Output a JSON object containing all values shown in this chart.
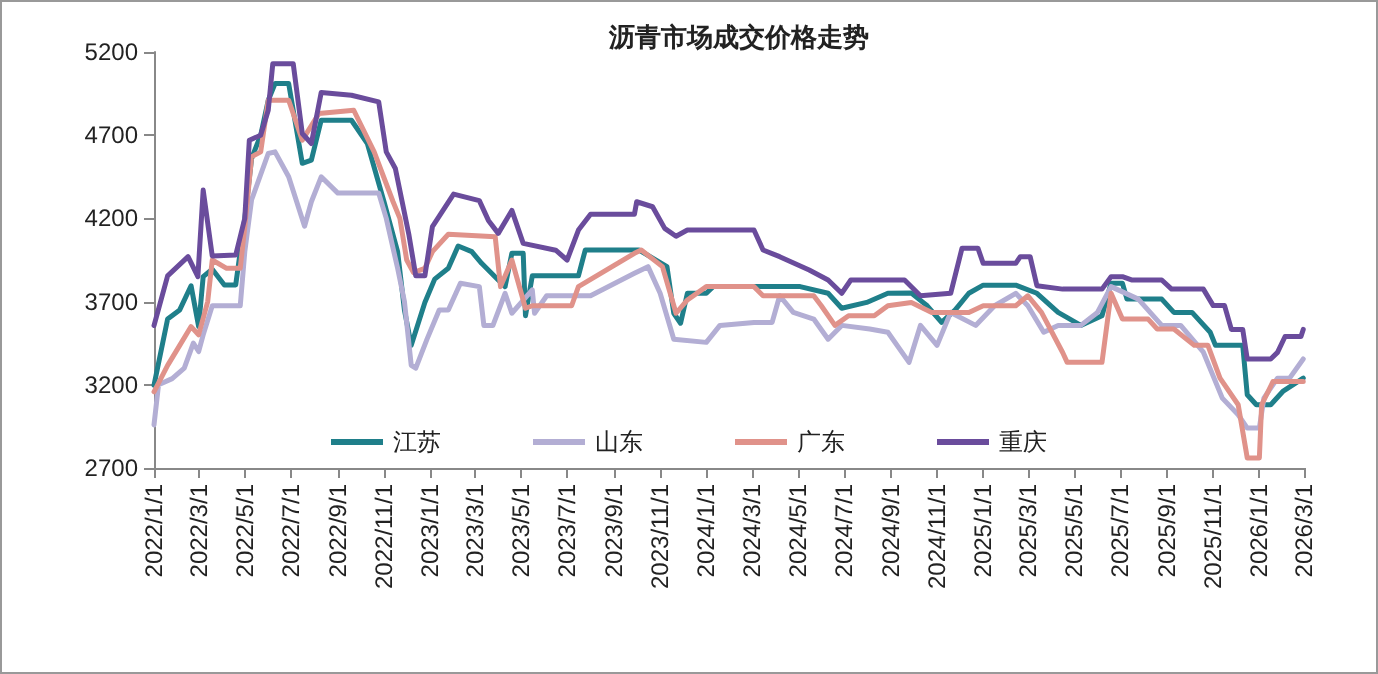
{
  "chart_data": {
    "type": "line",
    "title": "沥青市场成交价格走势",
    "xlim": [
      "2022-01-01",
      "2026-03-01"
    ],
    "xticks": [
      {
        "value": "2022-01-01",
        "label": "2022/1/1"
      },
      {
        "value": "2022-03-01",
        "label": "2022/3/1"
      },
      {
        "value": "2022-05-01",
        "label": "2022/5/1"
      },
      {
        "value": "2022-07-01",
        "label": "2022/7/1"
      },
      {
        "value": "2022-09-01",
        "label": "2022/9/1"
      },
      {
        "value": "2022-11-01",
        "label": "2022/11/1"
      },
      {
        "value": "2023-01-01",
        "label": "2023/1/1"
      },
      {
        "value": "2023-03-01",
        "label": "2023/3/1"
      },
      {
        "value": "2023-05-01",
        "label": "2023/5/1"
      },
      {
        "value": "2023-07-01",
        "label": "2023/7/1"
      },
      {
        "value": "2023-09-01",
        "label": "2023/9/1"
      },
      {
        "value": "2023-11-01",
        "label": "2023/11/1"
      },
      {
        "value": "2024-01-01",
        "label": "2024/1/1"
      },
      {
        "value": "2024-03-01",
        "label": "2024/3/1"
      },
      {
        "value": "2024-05-01",
        "label": "2024/5/1"
      },
      {
        "value": "2024-07-01",
        "label": "2024/7/1"
      },
      {
        "value": "2024-09-01",
        "label": "2024/9/1"
      },
      {
        "value": "2024-11-01",
        "label": "2024/11/1"
      },
      {
        "value": "2025-01-01",
        "label": "2025/1/1"
      },
      {
        "value": "2025-03-01",
        "label": "2025/3/1"
      },
      {
        "value": "2025-05-01",
        "label": "2025/5/1"
      },
      {
        "value": "2025-07-01",
        "label": "2025/7/1"
      },
      {
        "value": "2025-09-01",
        "label": "2025/9/1"
      },
      {
        "value": "2025-11-01",
        "label": "2025/11/1"
      },
      {
        "value": "2026-01-01",
        "label": "2026/1/1"
      },
      {
        "value": "2026-03-01",
        "label": "2026/3/1"
      }
    ],
    "ylim": [
      2700,
      5200
    ],
    "yticks": [
      2700,
      3200,
      3700,
      4200,
      4700,
      5200
    ],
    "grid": false,
    "legend": "bottom",
    "marker": "none",
    "line_style": "solid",
    "series": [
      {
        "name": "江苏",
        "color": "#1f7f8a",
        "x": [
          "2022-01-01",
          "2022-01-19",
          "2022-02-04",
          "2022-02-19",
          "2022-03-01",
          "2022-03-07",
          "2022-03-19",
          "2022-04-04",
          "2022-04-19",
          "2022-05-01",
          "2022-05-10",
          "2022-05-22",
          "2022-06-01",
          "2022-06-10",
          "2022-06-28",
          "2022-07-16",
          "2022-07-28",
          "2022-08-10",
          "2022-09-19",
          "2022-10-10",
          "2022-11-01",
          "2022-11-19",
          "2022-11-28",
          "2022-12-07",
          "2022-12-25",
          "2023-01-07",
          "2023-01-25",
          "2023-02-07",
          "2023-02-25",
          "2023-03-10",
          "2023-04-01",
          "2023-04-10",
          "2023-04-19",
          "2023-05-04",
          "2023-05-07",
          "2023-05-16",
          "2023-07-16",
          "2023-07-25",
          "2023-10-04",
          "2023-11-10",
          "2023-11-19",
          "2023-11-28",
          "2023-12-07",
          "2024-01-01",
          "2024-01-10",
          "2024-05-04",
          "2024-06-10",
          "2024-06-28",
          "2024-07-31",
          "2024-08-28",
          "2024-09-28",
          "2024-10-19",
          "2024-11-07",
          "2024-11-25",
          "2024-12-13",
          "2025-01-01",
          "2025-02-13",
          "2025-03-13",
          "2025-04-10",
          "2025-05-10",
          "2025-06-07",
          "2025-06-19",
          "2025-07-04",
          "2025-07-10",
          "2025-08-25",
          "2025-09-10",
          "2025-10-04",
          "2025-10-28",
          "2025-11-04",
          "2025-12-10",
          "2025-12-16",
          "2025-12-28",
          "2026-01-16",
          "2026-02-01",
          "2026-02-28"
        ],
        "values": [
          3197,
          3596,
          3650,
          3795,
          3550,
          3850,
          3894,
          3800,
          3800,
          4200,
          4560,
          4700,
          4910,
          5010,
          5010,
          4531,
          4550,
          4790,
          4790,
          4650,
          4300,
          4000,
          3650,
          3437,
          3695,
          3835,
          3900,
          4034,
          4000,
          3930,
          3830,
          3790,
          3990,
          3990,
          3615,
          3855,
          3855,
          4010,
          4010,
          3910,
          3630,
          3570,
          3750,
          3750,
          3790,
          3790,
          3750,
          3660,
          3695,
          3750,
          3751,
          3675,
          3575,
          3650,
          3750,
          3799,
          3799,
          3750,
          3635,
          3557,
          3615,
          3810,
          3810,
          3715,
          3715,
          3635,
          3635,
          3516,
          3437,
          3437,
          3140,
          3080,
          3080,
          3160,
          3240
        ]
      },
      {
        "name": "山东",
        "color": "#b3aed4",
        "x": [
          "2022-01-01",
          "2022-01-07",
          "2022-01-25",
          "2022-02-10",
          "2022-02-22",
          "2022-03-01",
          "2022-03-07",
          "2022-03-19",
          "2022-04-25",
          "2022-05-01",
          "2022-05-10",
          "2022-06-01",
          "2022-06-10",
          "2022-06-28",
          "2022-07-19",
          "2022-07-28",
          "2022-08-10",
          "2022-09-01",
          "2022-10-25",
          "2022-11-04",
          "2022-11-19",
          "2022-11-28",
          "2022-12-07",
          "2022-12-13",
          "2022-12-28",
          "2023-01-13",
          "2023-01-25",
          "2023-02-10",
          "2023-03-07",
          "2023-03-13",
          "2023-03-25",
          "2023-04-10",
          "2023-04-19",
          "2023-05-16",
          "2023-05-19",
          "2023-06-04",
          "2023-08-01",
          "2023-09-28",
          "2023-10-16",
          "2023-11-01",
          "2023-11-19",
          "2024-01-01",
          "2024-01-19",
          "2024-03-04",
          "2024-03-28",
          "2024-04-07",
          "2024-04-25",
          "2024-05-22",
          "2024-06-10",
          "2024-06-28",
          "2024-08-04",
          "2024-08-28",
          "2024-09-25",
          "2024-10-10",
          "2024-11-01",
          "2024-11-19",
          "2024-12-22",
          "2025-01-16",
          "2025-02-13",
          "2025-03-01",
          "2025-03-22",
          "2025-04-10",
          "2025-05-10",
          "2025-06-01",
          "2025-06-19",
          "2025-07-25",
          "2025-08-25",
          "2025-09-19",
          "2025-10-19",
          "2025-11-13",
          "2025-12-04",
          "2025-12-16",
          "2026-01-01",
          "2026-01-07",
          "2026-01-25",
          "2026-02-10",
          "2026-02-28"
        ],
        "values": [
          2959,
          3200,
          3237,
          3300,
          3450,
          3400,
          3500,
          3675,
          3675,
          4000,
          4312,
          4590,
          4600,
          4450,
          4153,
          4300,
          4450,
          4352,
          4352,
          4200,
          3900,
          3700,
          3317,
          3300,
          3476,
          3650,
          3650,
          3810,
          3790,
          3557,
          3557,
          3750,
          3630,
          3770,
          3630,
          3735,
          3735,
          3870,
          3910,
          3750,
          3474,
          3455,
          3557,
          3575,
          3575,
          3735,
          3635,
          3595,
          3474,
          3557,
          3535,
          3516,
          3335,
          3557,
          3437,
          3635,
          3557,
          3675,
          3750,
          3675,
          3516,
          3557,
          3557,
          3635,
          3790,
          3715,
          3557,
          3557,
          3396,
          3120,
          3020,
          2940,
          2940,
          3120,
          3240,
          3240,
          3355
        ]
      },
      {
        "name": "广东",
        "color": "#e0928a",
        "x": [
          "2022-01-01",
          "2022-01-19",
          "2022-02-04",
          "2022-02-19",
          "2022-03-01",
          "2022-03-13",
          "2022-03-19",
          "2022-04-07",
          "2022-04-25",
          "2022-05-01",
          "2022-05-10",
          "2022-05-22",
          "2022-06-01",
          "2022-06-28",
          "2022-07-16",
          "2022-08-07",
          "2022-09-22",
          "2022-10-19",
          "2022-11-13",
          "2022-11-22",
          "2022-12-01",
          "2022-12-10",
          "2022-12-25",
          "2023-01-04",
          "2023-01-25",
          "2023-03-28",
          "2023-04-04",
          "2023-04-19",
          "2023-05-07",
          "2023-05-16",
          "2023-07-07",
          "2023-07-16",
          "2023-09-28",
          "2023-10-07",
          "2023-11-04",
          "2023-11-22",
          "2023-12-07",
          "2024-01-01",
          "2024-03-04",
          "2024-03-16",
          "2024-05-22",
          "2024-06-01",
          "2024-06-19",
          "2024-07-07",
          "2024-08-10",
          "2024-08-28",
          "2024-09-28",
          "2024-10-25",
          "2024-12-13",
          "2025-01-01",
          "2025-02-13",
          "2025-03-01",
          "2025-03-19",
          "2025-04-16",
          "2025-04-22",
          "2025-06-07",
          "2025-06-19",
          "2025-07-04",
          "2025-08-07",
          "2025-08-19",
          "2025-09-10",
          "2025-10-07",
          "2025-10-25",
          "2025-11-10",
          "2025-12-04",
          "2025-12-16",
          "2026-01-01",
          "2026-01-04",
          "2026-01-19",
          "2026-02-28"
        ],
        "values": [
          3158,
          3317,
          3437,
          3550,
          3500,
          3700,
          3950,
          3900,
          3900,
          4150,
          4570,
          4600,
          4910,
          4910,
          4670,
          4830,
          4850,
          4600,
          4300,
          4200,
          3950,
          3874,
          3900,
          4000,
          4105,
          4089,
          3790,
          3950,
          3660,
          3675,
          3675,
          3790,
          3990,
          4010,
          3910,
          3630,
          3710,
          3790,
          3790,
          3735,
          3735,
          3675,
          3557,
          3615,
          3615,
          3675,
          3695,
          3635,
          3635,
          3675,
          3675,
          3735,
          3635,
          3394,
          3335,
          3335,
          3750,
          3595,
          3595,
          3535,
          3535,
          3437,
          3437,
          3240,
          3080,
          2760,
          2760,
          3080,
          3220,
          3220
        ]
      },
      {
        "name": "重庆",
        "color": "#6a4c9c",
        "x": [
          "2022-01-01",
          "2022-01-19",
          "2022-02-15",
          "2022-02-28",
          "2022-03-07",
          "2022-03-19",
          "2022-04-19",
          "2022-05-01",
          "2022-05-07",
          "2022-05-22",
          "2022-06-01",
          "2022-06-07",
          "2022-07-04",
          "2022-07-16",
          "2022-07-28",
          "2022-08-10",
          "2022-09-19",
          "2022-10-25",
          "2022-11-04",
          "2022-11-16",
          "2022-11-25",
          "2022-12-04",
          "2022-12-13",
          "2022-12-25",
          "2023-01-04",
          "2023-02-01",
          "2023-03-07",
          "2023-03-19",
          "2023-04-01",
          "2023-04-19",
          "2023-05-04",
          "2023-06-16",
          "2023-07-01",
          "2023-07-16",
          "2023-08-01",
          "2023-09-28",
          "2023-10-01",
          "2023-10-22",
          "2023-11-07",
          "2023-11-22",
          "2023-12-07",
          "2024-03-04",
          "2024-03-16",
          "2024-04-07",
          "2024-05-16",
          "2024-06-10",
          "2024-06-28",
          "2024-07-10",
          "2024-09-19",
          "2024-10-10",
          "2024-11-19",
          "2024-12-04",
          "2024-12-25",
          "2025-01-01",
          "2025-02-13",
          "2025-02-19",
          "2025-03-04",
          "2025-03-13",
          "2025-04-16",
          "2025-06-07",
          "2025-06-19",
          "2025-07-04",
          "2025-07-16",
          "2025-08-25",
          "2025-09-07",
          "2025-10-19",
          "2025-11-01",
          "2025-11-16",
          "2025-11-25",
          "2025-12-10",
          "2025-12-16",
          "2026-01-16",
          "2026-01-25",
          "2026-02-04",
          "2026-02-25",
          "2026-02-28"
        ],
        "values": [
          3556,
          3855,
          3970,
          3850,
          4370,
          3974,
          3980,
          4200,
          4670,
          4700,
          4850,
          5130,
          5130,
          4710,
          4650,
          4957,
          4940,
          4900,
          4600,
          4500,
          4300,
          4100,
          3855,
          3855,
          4150,
          4346,
          4307,
          4188,
          4110,
          4248,
          4050,
          4009,
          3950,
          4130,
          4225,
          4225,
          4300,
          4270,
          4140,
          4093,
          4130,
          4130,
          4010,
          3970,
          3890,
          3830,
          3750,
          3830,
          3830,
          3735,
          3750,
          4021,
          4021,
          3930,
          3930,
          3970,
          3970,
          3795,
          3775,
          3775,
          3850,
          3850,
          3830,
          3830,
          3775,
          3775,
          3676,
          3676,
          3533,
          3533,
          3355,
          3355,
          3395,
          3490,
          3490,
          3533
        ]
      }
    ]
  }
}
